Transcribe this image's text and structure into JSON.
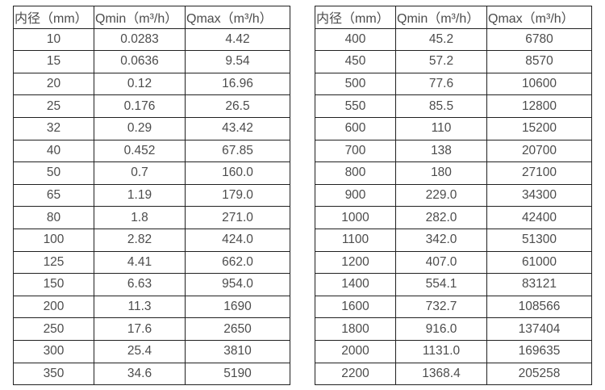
{
  "colors": {
    "background": "#ffffff",
    "grid_border": "#212121",
    "text": "#4c4c4c"
  },
  "tables": [
    {
      "name": "flow-range-small-diameters",
      "headers": [
        "内径（mm）",
        "Qmin（m³/h）",
        "Qmax（m³/h）"
      ],
      "rows": [
        [
          "10",
          "0.0283",
          "4.42"
        ],
        [
          "15",
          "0.0636",
          "9.54"
        ],
        [
          "20",
          "0.12",
          "16.96"
        ],
        [
          "25",
          "0.176",
          "26.5"
        ],
        [
          "32",
          "0.29",
          "43.42"
        ],
        [
          "40",
          "0.452",
          "67.85"
        ],
        [
          "50",
          "0.7",
          "160.0"
        ],
        [
          "65",
          "1.19",
          "179.0"
        ],
        [
          "80",
          "1.8",
          "271.0"
        ],
        [
          "100",
          "2.82",
          "424.0"
        ],
        [
          "125",
          "4.41",
          "662.0"
        ],
        [
          "150",
          "6.63",
          "954.0"
        ],
        [
          "200",
          "11.3",
          "1690"
        ],
        [
          "250",
          "17.6",
          "2650"
        ],
        [
          "300",
          "25.4",
          "3810"
        ],
        [
          "350",
          "34.6",
          "5190"
        ]
      ]
    },
    {
      "name": "flow-range-large-diameters",
      "headers": [
        "内径（mm）",
        "Qmin（m³/h）",
        "Qmax（m³/h）"
      ],
      "rows": [
        [
          "400",
          "45.2",
          "6780"
        ],
        [
          "450",
          "57.2",
          "8570"
        ],
        [
          "500",
          "77.6",
          "10600"
        ],
        [
          "550",
          "85.5",
          "12800"
        ],
        [
          "600",
          "110",
          "15200"
        ],
        [
          "700",
          "138",
          "20700"
        ],
        [
          "800",
          "180",
          "27100"
        ],
        [
          "900",
          "229.0",
          "34300"
        ],
        [
          "1000",
          "282.0",
          "42400"
        ],
        [
          "1100",
          "342.0",
          "51300"
        ],
        [
          "1200",
          "407.0",
          "61000"
        ],
        [
          "1400",
          "554.1",
          "83121"
        ],
        [
          "1600",
          "732.7",
          "108566"
        ],
        [
          "1800",
          "916.0",
          "137404"
        ],
        [
          "2000",
          "1131.0",
          "169635"
        ],
        [
          "2200",
          "1368.4",
          "205258"
        ]
      ]
    }
  ]
}
